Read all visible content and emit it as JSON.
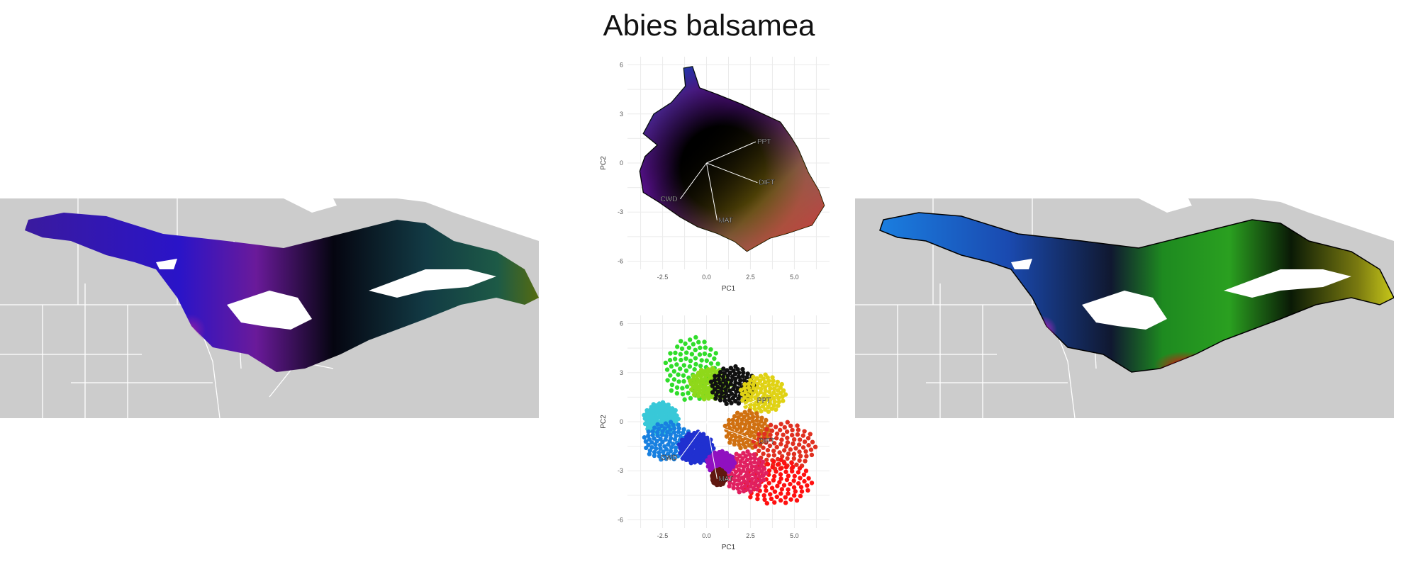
{
  "title": "Abies balsamea",
  "chart_data": [
    {
      "type": "scatter",
      "name": "pca-top",
      "xlabel": "PC1",
      "ylabel": "PC2",
      "xticks": [
        "-2.5",
        "0.0",
        "2.5",
        "5.0"
      ],
      "yticks": [
        "6",
        "3",
        "0",
        "-3",
        "-6"
      ],
      "xlim": [
        -4.5,
        7
      ],
      "ylim": [
        -6.5,
        6.5
      ],
      "grid": true,
      "hull": [
        [
          -1.3,
          5.8
        ],
        [
          -0.8,
          5.9
        ],
        [
          -0.4,
          4.6
        ],
        [
          0.6,
          4.2
        ],
        [
          2.0,
          3.6
        ],
        [
          3.2,
          3.0
        ],
        [
          4.2,
          2.5
        ],
        [
          4.8,
          1.6
        ],
        [
          5.2,
          0.9
        ],
        [
          5.8,
          -0.6
        ],
        [
          6.4,
          -1.7
        ],
        [
          6.7,
          -2.6
        ],
        [
          6.0,
          -3.8
        ],
        [
          4.6,
          -4.3
        ],
        [
          3.6,
          -4.6
        ],
        [
          2.3,
          -5.4
        ],
        [
          1.6,
          -4.8
        ],
        [
          0.6,
          -4.3
        ],
        [
          -0.5,
          -3.9
        ],
        [
          -1.5,
          -3.3
        ],
        [
          -2.7,
          -2.4
        ],
        [
          -3.6,
          -1.8
        ],
        [
          -3.8,
          -0.5
        ],
        [
          -3.5,
          0.4
        ],
        [
          -2.8,
          1.1
        ],
        [
          -3.6,
          1.8
        ],
        [
          -3.0,
          3.0
        ],
        [
          -2.0,
          3.7
        ],
        [
          -1.2,
          4.7
        ]
      ],
      "vectors": [
        {
          "label": "PPT",
          "x": 2.8,
          "y": 1.3
        },
        {
          "label": "DIFT",
          "x": 2.9,
          "y": -1.2
        },
        {
          "label": "MAT",
          "x": 0.6,
          "y": -3.5
        },
        {
          "label": "CWD",
          "x": -1.5,
          "y": -2.2
        }
      ]
    },
    {
      "type": "scatter",
      "name": "pca-bottom",
      "xlabel": "PC1",
      "ylabel": "PC2",
      "xticks": [
        "-2.5",
        "0.0",
        "2.5",
        "5.0"
      ],
      "yticks": [
        "6",
        "3",
        "0",
        "-3",
        "-6"
      ],
      "xlim": [
        -4.5,
        7
      ],
      "ylim": [
        -6.5,
        6.5
      ],
      "grid": true,
      "clusters": [
        {
          "color": "#30dd2a",
          "cx": -0.8,
          "cy": 3.2,
          "rx": 1.6,
          "ry": 2.0
        },
        {
          "color": "#8fd81a",
          "cx": 0.2,
          "cy": 2.3,
          "rx": 1.2,
          "ry": 1.0
        },
        {
          "color": "#111111",
          "cx": 1.5,
          "cy": 2.2,
          "rx": 1.3,
          "ry": 1.2
        },
        {
          "color": "#e0d214",
          "cx": 3.2,
          "cy": 1.7,
          "rx": 1.3,
          "ry": 1.2
        },
        {
          "color": "#38c8d8",
          "cx": -2.6,
          "cy": 0.2,
          "rx": 1.0,
          "ry": 1.0
        },
        {
          "color": "#1880e0",
          "cx": -2.2,
          "cy": -1.2,
          "rx": 1.4,
          "ry": 1.2
        },
        {
          "color": "#2030d0",
          "cx": -0.6,
          "cy": -1.6,
          "rx": 1.0,
          "ry": 1.0
        },
        {
          "color": "#d07010",
          "cx": 2.3,
          "cy": -0.5,
          "rx": 1.3,
          "ry": 1.2
        },
        {
          "color": "#e03020",
          "cx": 4.4,
          "cy": -1.5,
          "rx": 1.8,
          "ry": 1.5
        },
        {
          "color": "#ff1010",
          "cx": 4.0,
          "cy": -3.7,
          "rx": 2.0,
          "ry": 1.4
        },
        {
          "color": "#e02060",
          "cx": 2.2,
          "cy": -3.1,
          "rx": 1.2,
          "ry": 1.3
        },
        {
          "color": "#9010c0",
          "cx": 0.8,
          "cy": -2.5,
          "rx": 0.8,
          "ry": 0.7
        },
        {
          "color": "#601810",
          "cx": 0.7,
          "cy": -3.4,
          "rx": 0.4,
          "ry": 0.5
        }
      ],
      "vectors": [
        {
          "label": "PPT",
          "x": 2.8,
          "y": 1.3
        },
        {
          "label": "DIFT",
          "x": 2.9,
          "y": -1.2
        },
        {
          "label": "MAT",
          "x": 0.6,
          "y": -3.5
        },
        {
          "label": "CWD",
          "x": -1.5,
          "y": -2.2
        }
      ]
    }
  ],
  "maps": {
    "background_color": "#cccccc",
    "border_color": "#ffffff"
  }
}
